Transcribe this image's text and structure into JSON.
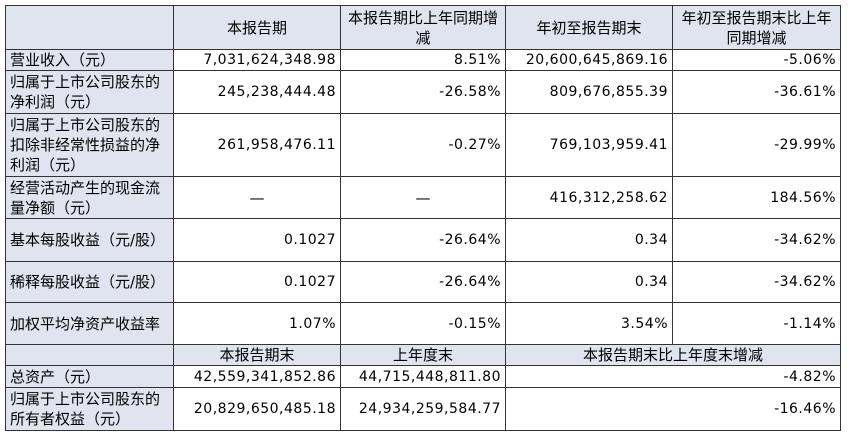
{
  "table": {
    "header": [
      "本报告期",
      "本报告期比上年同期增减",
      "年初至报告期末",
      "年初至报告期末比上年同期增减"
    ],
    "rows": [
      [
        "营业收入（元）",
        "7,031,624,348.98",
        "8.51%",
        "20,600,645,869.16",
        "-5.06%"
      ],
      [
        "归属于上市公司股东的净利润（元）",
        "245,238,444.48",
        "-26.58%",
        "809,676,855.39",
        "-36.61%"
      ],
      [
        "归属于上市公司股东的扣除非经常性损益的净利润（元）",
        "261,958,476.11",
        "-0.27%",
        "769,103,959.41",
        "-29.99%"
      ],
      [
        "经营活动产生的现金流量净额（元）",
        "—",
        "—",
        "416,312,258.62",
        "184.56%"
      ],
      [
        "基本每股收益（元/股）",
        "0.1027",
        "-26.64%",
        "0.34",
        "-34.62%"
      ],
      [
        "稀释每股收益（元/股）",
        "0.1027",
        "-26.64%",
        "0.34",
        "-34.62%"
      ],
      [
        "加权平均净资产收益率",
        "1.07%",
        "-0.15%",
        "3.54%",
        "-1.14%"
      ]
    ]
  },
  "balance": {
    "header": [
      "本报告期末",
      "上年度末",
      "本报告期末比上年度末增减"
    ],
    "rows": [
      [
        "总资产（元）",
        "42,559,341,852.86",
        "44,715,448,811.80",
        "-4.82%"
      ],
      [
        "归属于上市公司股东的所有者权益（元）",
        "20,829,650,485.18",
        "24,934,259,584.77",
        "-16.46%"
      ]
    ]
  }
}
